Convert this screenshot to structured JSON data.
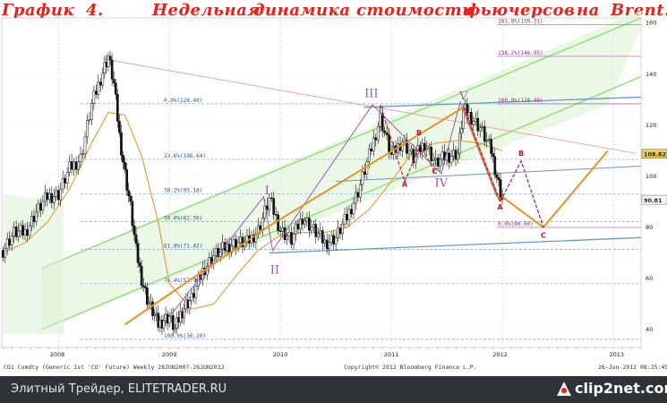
{
  "title": {
    "words": [
      "График",
      "4.",
      "Недельная",
      "динамика",
      "стоимости",
      "фьючерсов",
      "на",
      "Brent."
    ]
  },
  "footer": {
    "left_text": "Элитный Трейдер, ELITETRADER.RU",
    "logo_text": "clip2net.com",
    "source_left": "CO1 Comdty (Generic 1st 'CO' Future) Weekly 28JUN2007-26JUN2012",
    "source_mid": "Copyright© 2012 Bloomberg Finance L.P.",
    "source_right": "26-Jun-2012 08:25:45"
  },
  "chart_data": {
    "type": "candlestick",
    "title": "Недельная динамика стоимости фьючерсов на Brent.",
    "xlabel": "",
    "ylabel": "",
    "y_ticks": [
      40,
      60,
      80,
      100,
      120,
      140,
      160
    ],
    "ylim": [
      33,
      162
    ],
    "x_ticks": [
      "2008",
      "2009",
      "2010",
      "2011",
      "2012",
      "2013"
    ],
    "xlim": [
      2007.49,
      2013.25
    ],
    "last_price": "108.82",
    "current_price": "90.81",
    "grid": true,
    "fib_levels": [
      {
        "label": "0.0%(128.40)",
        "value": 128.4
      },
      {
        "label": "23.6%(106.64)",
        "value": 106.64
      },
      {
        "label": "38.2%(93.18)",
        "value": 93.18
      },
      {
        "label": "50.0%(82.30)",
        "value": 82.3
      },
      {
        "label": "61.8%(71.42)",
        "value": 71.42
      },
      {
        "label": "76.4%(57.96)",
        "value": 57.96
      },
      {
        "label": "100.0%(36.20)",
        "value": 36.2
      }
    ],
    "ext_levels": [
      {
        "label": "161.8%(159.31)",
        "value": 159.31
      },
      {
        "label": "138.2%(146.95)",
        "value": 146.95
      },
      {
        "label": "100.0%(128.40)",
        "value": 128.4
      },
      {
        "label": "0.0%(80.00)",
        "value": 80.0
      }
    ],
    "wave_labels": [
      {
        "label": "I",
        "x": 2009.88,
        "y": 93
      },
      {
        "label": "II",
        "x": 2009.95,
        "y": 62
      },
      {
        "label": "III",
        "x": 2010.82,
        "y": 131
      },
      {
        "label": "IV",
        "x": 2011.45,
        "y": 96
      },
      {
        "label": "V",
        "x": 2011.65,
        "y": 130
      }
    ],
    "abc_labels": [
      {
        "label": "A",
        "x": 2011.12,
        "y": 96
      },
      {
        "label": "B",
        "x": 2011.25,
        "y": 116
      },
      {
        "label": "C",
        "x": 2011.39,
        "y": 101
      },
      {
        "label": "A",
        "x": 2011.98,
        "y": 87
      },
      {
        "label": "B",
        "x": 2012.17,
        "y": 108
      },
      {
        "label": "C",
        "x": 2012.37,
        "y": 76
      }
    ],
    "series": [
      {
        "name": "",
        "x": [
          2007.5,
          2007.6,
          2007.7,
          2007.8,
          2007.9,
          2008.0,
          2008.1,
          2008.2,
          2008.3,
          2008.4,
          2008.45,
          2008.5,
          2008.55,
          2008.6,
          2008.65,
          2008.7,
          2008.75,
          2008.8,
          2008.85,
          2008.9,
          2008.95,
          2009.0,
          2009.05,
          2009.1,
          2009.15,
          2009.2,
          2009.3,
          2009.4,
          2009.5,
          2009.6,
          2009.7,
          2009.8,
          2009.9,
          2010.0,
          2010.1,
          2010.2,
          2010.3,
          2010.4,
          2010.5,
          2010.6,
          2010.7,
          2010.8,
          2010.9,
          2011.0,
          2011.1,
          2011.2,
          2011.3,
          2011.4,
          2011.5,
          2011.6,
          2011.65,
          2011.7,
          2011.8,
          2011.9,
          2011.95,
          2012.0
        ],
        "values": [
          71,
          78,
          78,
          86,
          92,
          93,
          103,
          107,
          128,
          141,
          147,
          136,
          116,
          101,
          88,
          71,
          60,
          52,
          47,
          42,
          44,
          45,
          40,
          46,
          50,
          52,
          63,
          69,
          72,
          74,
          74,
          79,
          91,
          79,
          75,
          84,
          79,
          74,
          76,
          84,
          94,
          108,
          123,
          108,
          114,
          107,
          113,
          105,
          108,
          109,
          126,
          124,
          119,
          110,
          100,
          91
        ]
      }
    ],
    "ma_series": {
      "name": "",
      "x": [
        2007.5,
        2007.7,
        2007.9,
        2008.1,
        2008.3,
        2008.45,
        2008.6,
        2008.75,
        2008.9,
        2009.0,
        2009.2,
        2009.4,
        2009.6,
        2009.8,
        2010.0,
        2010.2,
        2010.4,
        2010.6,
        2010.8,
        2011.0,
        2011.2,
        2011.4,
        2011.6,
        2011.8,
        2012.0
      ],
      "values": [
        70,
        74,
        82,
        95,
        113,
        125,
        124,
        108,
        82,
        58,
        48,
        50,
        61,
        71,
        77,
        78,
        78,
        80,
        87,
        98,
        110,
        113,
        114,
        113,
        110
      ]
    }
  }
}
